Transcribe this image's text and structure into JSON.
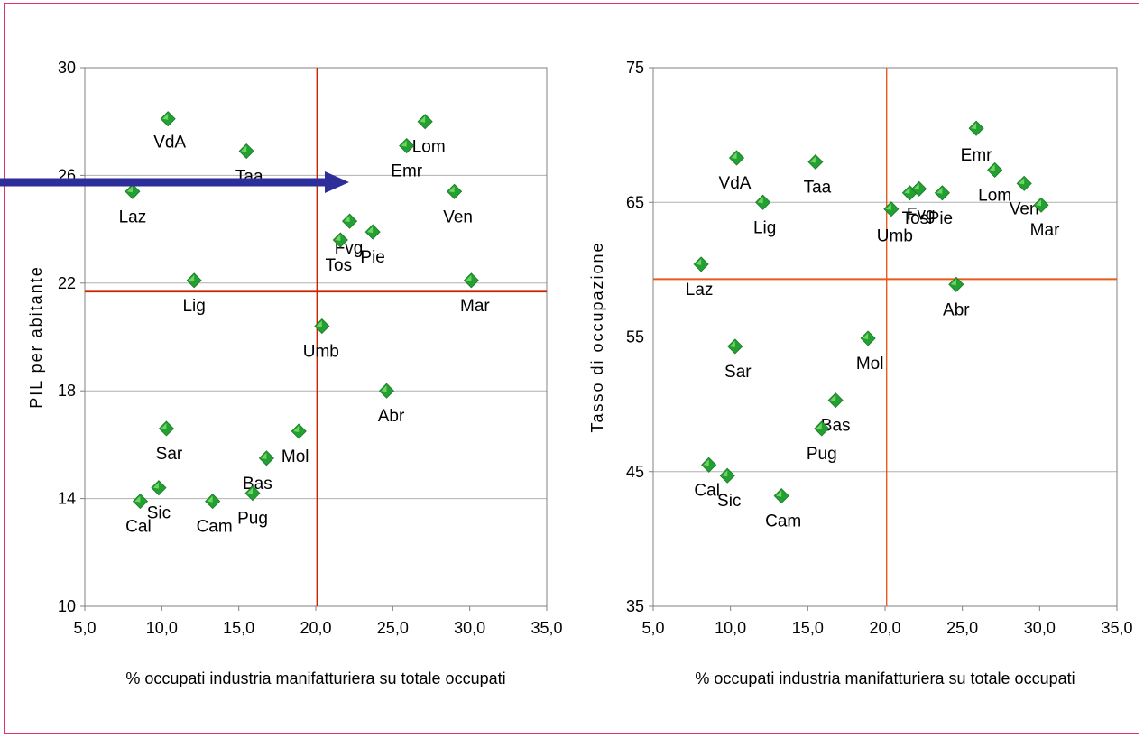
{
  "colors": {
    "frame": "#e03070",
    "grid": "#b0b0b0",
    "axis": "#808080",
    "refline_left": "#cc2200",
    "refline_right": "#e85a1a",
    "marker": "#22a032",
    "marker_light": "#7fdc6a",
    "arrow": "#2e2e9a"
  },
  "chart_data": [
    {
      "type": "scatter",
      "xlabel": "% occupati industria manifatturiera su  totale occupati",
      "ylabel": "PIL per abitante",
      "xlim": [
        5,
        35
      ],
      "ylim": [
        10,
        30
      ],
      "xticks": [
        "5,0",
        "10,0",
        "15,0",
        "20,0",
        "25,0",
        "30,0",
        "35,0"
      ],
      "yticks": [
        "10",
        "14",
        "18",
        "22",
        "26",
        "30"
      ],
      "grid": "horizontal",
      "reference_lines": {
        "x": 20.1,
        "y": 21.7
      },
      "points": [
        {
          "label": "VdA",
          "x": 10.4,
          "y": 28.1
        },
        {
          "label": "Taa",
          "x": 15.5,
          "y": 26.9
        },
        {
          "label": "Lom",
          "x": 27.1,
          "y": 28.0
        },
        {
          "label": "Emr",
          "x": 25.9,
          "y": 27.1
        },
        {
          "label": "Laz",
          "x": 8.1,
          "y": 25.4
        },
        {
          "label": "Ven",
          "x": 29.0,
          "y": 25.4
        },
        {
          "label": "Fvg",
          "x": 22.2,
          "y": 24.3
        },
        {
          "label": "Tos",
          "x": 21.6,
          "y": 23.6
        },
        {
          "label": "Pie",
          "x": 23.7,
          "y": 23.9
        },
        {
          "label": "Lig",
          "x": 12.1,
          "y": 22.1
        },
        {
          "label": "Mar",
          "x": 30.1,
          "y": 22.1
        },
        {
          "label": "Umb",
          "x": 20.4,
          "y": 20.4
        },
        {
          "label": "Abr",
          "x": 24.6,
          "y": 18.0
        },
        {
          "label": "Sar",
          "x": 10.3,
          "y": 16.6
        },
        {
          "label": "Mol",
          "x": 18.9,
          "y": 16.5
        },
        {
          "label": "Bas",
          "x": 16.8,
          "y": 15.5
        },
        {
          "label": "Pug",
          "x": 15.9,
          "y": 14.2
        },
        {
          "label": "Sic",
          "x": 9.8,
          "y": 14.4
        },
        {
          "label": "Cal",
          "x": 8.6,
          "y": 13.9
        },
        {
          "label": "Cam",
          "x": 13.3,
          "y": 13.9
        }
      ]
    },
    {
      "type": "scatter",
      "xlabel": "% occupati industria manifatturiera su  totale occupati",
      "ylabel": "Tasso di occupazione",
      "xlim": [
        5,
        35
      ],
      "ylim": [
        35,
        75
      ],
      "xticks": [
        "5,0",
        "10,0",
        "15,0",
        "20,0",
        "25,0",
        "30,0",
        "35,0"
      ],
      "yticks": [
        "35",
        "45",
        "55",
        "65",
        "75"
      ],
      "grid": "horizontal",
      "reference_lines": {
        "x": 20.1,
        "y": 59.3
      },
      "points": [
        {
          "label": "VdA",
          "x": 10.4,
          "y": 68.3
        },
        {
          "label": "Taa",
          "x": 15.5,
          "y": 68.0
        },
        {
          "label": "Emr",
          "x": 25.9,
          "y": 70.5
        },
        {
          "label": "Lom",
          "x": 27.1,
          "y": 67.4
        },
        {
          "label": "Ven",
          "x": 29.0,
          "y": 66.4
        },
        {
          "label": "Mar",
          "x": 30.1,
          "y": 64.8
        },
        {
          "label": "Lig",
          "x": 12.1,
          "y": 65.0
        },
        {
          "label": "Umb",
          "x": 20.4,
          "y": 64.5
        },
        {
          "label": "Tos",
          "x": 21.6,
          "y": 65.7
        },
        {
          "label": "Fvg",
          "x": 22.2,
          "y": 66.0
        },
        {
          "label": "Pie",
          "x": 23.7,
          "y": 65.7
        },
        {
          "label": "Laz",
          "x": 8.1,
          "y": 60.4
        },
        {
          "label": "Abr",
          "x": 24.6,
          "y": 58.9
        },
        {
          "label": "Sar",
          "x": 10.3,
          "y": 54.3
        },
        {
          "label": "Mol",
          "x": 18.9,
          "y": 54.9
        },
        {
          "label": "Bas",
          "x": 16.8,
          "y": 50.3
        },
        {
          "label": "Pug",
          "x": 15.9,
          "y": 48.2
        },
        {
          "label": "Cal",
          "x": 8.6,
          "y": 45.5
        },
        {
          "label": "Sic",
          "x": 9.8,
          "y": 44.7
        },
        {
          "label": "Cam",
          "x": 13.3,
          "y": 43.2
        }
      ]
    }
  ]
}
